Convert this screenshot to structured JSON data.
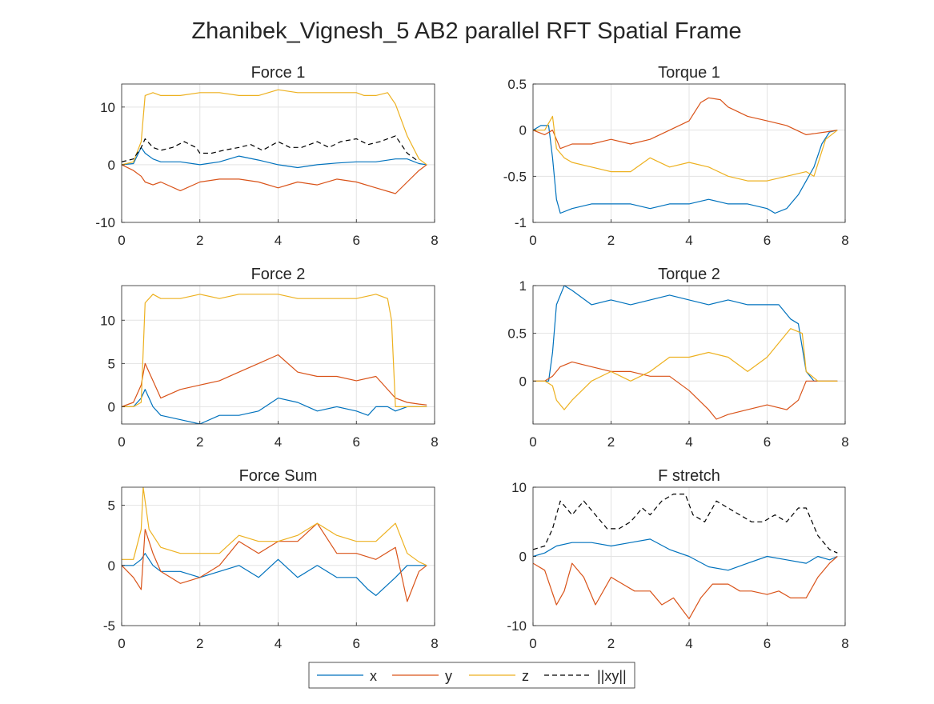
{
  "figure_title": "Zhanibek_Vignesh_5 AB2 parallel RFT Spatial Frame",
  "colors": {
    "x": "#0072BD",
    "y": "#D95319",
    "z": "#EDB120",
    "xy": "#000000"
  },
  "legend": [
    {
      "key": "x",
      "label": "x",
      "dash": false
    },
    {
      "key": "y",
      "label": "y",
      "dash": false
    },
    {
      "key": "z",
      "label": "z",
      "dash": false
    },
    {
      "key": "xy",
      "label": "||xy||",
      "dash": true
    }
  ],
  "chart_data": [
    {
      "type": "line",
      "title": "Force 1",
      "xlim": [
        0,
        8
      ],
      "ylim": [
        -10,
        14
      ],
      "xticks": [
        0,
        2,
        4,
        6,
        8
      ],
      "yticks": [
        -10,
        0,
        10
      ],
      "grid": true,
      "series": [
        {
          "key": "x",
          "x": [
            0,
            0.3,
            0.5,
            0.6,
            0.8,
            1,
            1.5,
            2,
            2.5,
            3,
            3.5,
            4,
            4.5,
            5,
            5.5,
            6,
            6.5,
            7,
            7.3,
            7.6,
            7.8
          ],
          "y": [
            0,
            0.2,
            3,
            2,
            1,
            0.5,
            0.5,
            0,
            0.5,
            1.5,
            0.8,
            0,
            -0.5,
            0,
            0.3,
            0.5,
            0.5,
            1,
            1,
            0.2,
            0
          ]
        },
        {
          "key": "y",
          "x": [
            0,
            0.3,
            0.5,
            0.6,
            0.8,
            1,
            1.5,
            2,
            2.5,
            3,
            3.5,
            4,
            4.5,
            5,
            5.5,
            6,
            6.5,
            7,
            7.3,
            7.6,
            7.8
          ],
          "y": [
            0,
            -1,
            -2,
            -3,
            -3.5,
            -3,
            -4.5,
            -3,
            -2.5,
            -2.5,
            -3,
            -4,
            -3,
            -3.5,
            -2.5,
            -3,
            -4,
            -5,
            -3,
            -1,
            0
          ]
        },
        {
          "key": "z",
          "x": [
            0,
            0.3,
            0.5,
            0.6,
            0.8,
            1,
            1.5,
            2,
            2.5,
            3,
            3.5,
            4,
            4.5,
            5,
            5.5,
            6,
            6.2,
            6.5,
            6.8,
            7,
            7.3,
            7.6,
            7.8
          ],
          "y": [
            0,
            0.5,
            4,
            12,
            12.5,
            12,
            12,
            12.5,
            12.5,
            12,
            12,
            13,
            12.5,
            12.5,
            12.5,
            12.5,
            12,
            12,
            12.5,
            10.5,
            5,
            1,
            0
          ]
        },
        {
          "key": "xy",
          "dash": true,
          "x": [
            0,
            0.3,
            0.5,
            0.6,
            0.8,
            1,
            1.3,
            1.6,
            1.9,
            2,
            2.3,
            2.6,
            3,
            3.3,
            3.6,
            4,
            4.3,
            4.6,
            5,
            5.3,
            5.6,
            6,
            6.3,
            6.6,
            7,
            7.3,
            7.6
          ],
          "y": [
            0.5,
            1,
            3,
            4.5,
            3,
            2.5,
            3,
            4,
            3,
            2,
            2,
            2.5,
            3,
            3.5,
            2.5,
            4,
            3,
            3,
            4,
            3,
            4,
            4.5,
            3.5,
            4,
            5,
            2,
            0.5
          ]
        }
      ]
    },
    {
      "type": "line",
      "title": "Torque 1",
      "xlim": [
        0,
        8
      ],
      "ylim": [
        -1,
        0.5
      ],
      "xticks": [
        0,
        2,
        4,
        6,
        8
      ],
      "yticks": [
        -1,
        -0.5,
        0,
        0.5
      ],
      "grid": true,
      "series": [
        {
          "key": "x",
          "x": [
            0,
            0.2,
            0.4,
            0.5,
            0.6,
            0.7,
            1,
            1.5,
            2,
            2.5,
            3,
            3.5,
            4,
            4.5,
            5,
            5.5,
            6,
            6.2,
            6.5,
            6.8,
            7,
            7.2,
            7.4,
            7.6,
            7.8
          ],
          "y": [
            0,
            0.05,
            0.05,
            -0.3,
            -0.75,
            -0.9,
            -0.85,
            -0.8,
            -0.8,
            -0.8,
            -0.85,
            -0.8,
            -0.8,
            -0.75,
            -0.8,
            -0.8,
            -0.85,
            -0.9,
            -0.85,
            -0.7,
            -0.55,
            -0.4,
            -0.15,
            -0.02,
            0
          ]
        },
        {
          "key": "y",
          "x": [
            0,
            0.3,
            0.5,
            0.7,
            1,
            1.5,
            2,
            2.5,
            3,
            3.5,
            4,
            4.3,
            4.5,
            4.8,
            5,
            5.5,
            6,
            6.5,
            7,
            7.5,
            7.8
          ],
          "y": [
            0,
            -0.05,
            0,
            -0.2,
            -0.15,
            -0.15,
            -0.1,
            -0.15,
            -0.1,
            0,
            0.1,
            0.3,
            0.35,
            0.33,
            0.25,
            0.15,
            0.1,
            0.05,
            -0.05,
            -0.02,
            0
          ]
        },
        {
          "key": "y_z",
          "x": [
            0,
            0.3,
            0.5,
            0.6,
            0.8,
            1,
            1.5,
            2,
            2.5,
            3,
            3.5,
            4,
            4.5,
            5,
            5.5,
            6,
            6.5,
            7,
            7.2,
            7.5,
            7.8
          ],
          "y": [
            0,
            0,
            0.15,
            -0.2,
            -0.3,
            -0.35,
            -0.4,
            -0.45,
            -0.45,
            -0.3,
            -0.4,
            -0.35,
            -0.4,
            -0.5,
            -0.55,
            -0.55,
            -0.5,
            -0.45,
            -0.5,
            -0.1,
            0
          ]
        }
      ]
    },
    {
      "type": "line",
      "title": "Force 2",
      "xlim": [
        0,
        8
      ],
      "ylim": [
        -2,
        14
      ],
      "xticks": [
        0,
        2,
        4,
        6,
        8
      ],
      "yticks": [
        0,
        5,
        10
      ],
      "grid": true,
      "series": [
        {
          "key": "x",
          "x": [
            0,
            0.3,
            0.5,
            0.6,
            0.8,
            1,
            1.5,
            2,
            2.5,
            3,
            3.5,
            4,
            4.5,
            5,
            5.5,
            6,
            6.3,
            6.5,
            6.8,
            7,
            7.3,
            7.6,
            7.8
          ],
          "y": [
            0,
            0,
            1,
            2,
            0,
            -1,
            -1.5,
            -2,
            -1,
            -1,
            -0.5,
            1,
            0.5,
            -0.5,
            0,
            -0.5,
            -1,
            0,
            0,
            -0.5,
            0,
            0,
            0
          ]
        },
        {
          "key": "y",
          "x": [
            0,
            0.3,
            0.5,
            0.6,
            0.8,
            1,
            1.5,
            2,
            2.5,
            3,
            3.5,
            4,
            4.5,
            5,
            5.5,
            6,
            6.5,
            7,
            7.3,
            7.6,
            7.8
          ],
          "y": [
            0,
            0.5,
            2.5,
            5,
            3,
            1,
            2,
            2.5,
            3,
            4,
            5,
            6,
            4,
            3.5,
            3.5,
            3,
            3.5,
            1,
            0.5,
            0.3,
            0.2
          ]
        },
        {
          "key": "z",
          "x": [
            0,
            0.3,
            0.5,
            0.6,
            0.8,
            1,
            1.5,
            2,
            2.5,
            3,
            3.5,
            4,
            4.5,
            5,
            5.5,
            6,
            6.5,
            6.8,
            6.9,
            7,
            7.3,
            7.6,
            7.8
          ],
          "y": [
            0,
            0,
            0.5,
            12,
            13,
            12.5,
            12.5,
            13,
            12.5,
            13,
            13,
            13,
            12.5,
            12.5,
            12.5,
            12.5,
            13,
            12.5,
            10,
            0,
            0,
            0,
            0
          ]
        }
      ]
    },
    {
      "type": "line",
      "title": "Torque 2",
      "xlim": [
        0,
        8
      ],
      "ylim": [
        -0.45,
        1
      ],
      "xticks": [
        0,
        2,
        4,
        6,
        8
      ],
      "yticks": [
        0,
        0.5,
        1
      ],
      "grid": true,
      "series": [
        {
          "key": "x",
          "x": [
            0,
            0.3,
            0.4,
            0.5,
            0.6,
            0.8,
            1,
            1.5,
            2,
            2.5,
            3,
            3.5,
            4,
            4.5,
            5,
            5.5,
            6,
            6.3,
            6.6,
            6.8,
            7,
            7.2,
            7.5,
            7.8
          ],
          "y": [
            0,
            0,
            0,
            0.3,
            0.8,
            1,
            0.95,
            0.8,
            0.85,
            0.8,
            0.85,
            0.9,
            0.85,
            0.8,
            0.85,
            0.8,
            0.8,
            0.8,
            0.65,
            0.6,
            0.1,
            0,
            0,
            0
          ]
        },
        {
          "key": "y",
          "x": [
            0,
            0.3,
            0.5,
            0.7,
            1,
            1.5,
            2,
            2.5,
            3,
            3.5,
            4,
            4.5,
            4.7,
            5,
            5.5,
            6,
            6.5,
            6.8,
            7,
            7.3,
            7.6,
            7.8
          ],
          "y": [
            0,
            0,
            0.05,
            0.15,
            0.2,
            0.15,
            0.1,
            0.1,
            0.05,
            0.05,
            -0.1,
            -0.3,
            -0.4,
            -0.35,
            -0.3,
            -0.25,
            -0.3,
            -0.2,
            0,
            0,
            0,
            0
          ]
        },
        {
          "key": "z",
          "x": [
            0,
            0.3,
            0.5,
            0.6,
            0.8,
            1,
            1.5,
            2,
            2.5,
            3,
            3.5,
            4,
            4.5,
            5,
            5.5,
            6,
            6.3,
            6.6,
            6.9,
            7,
            7.3,
            7.6,
            7.8
          ],
          "y": [
            0,
            0,
            -0.05,
            -0.2,
            -0.3,
            -0.2,
            0,
            0.1,
            0,
            0.1,
            0.25,
            0.25,
            0.3,
            0.25,
            0.1,
            0.25,
            0.4,
            0.55,
            0.5,
            0.1,
            0,
            0,
            0
          ]
        }
      ]
    },
    {
      "type": "line",
      "title": "Force Sum",
      "xlim": [
        0,
        8
      ],
      "ylim": [
        -5,
        6.5
      ],
      "xticks": [
        0,
        2,
        4,
        6,
        8
      ],
      "yticks": [
        -5,
        0,
        5
      ],
      "grid": true,
      "series": [
        {
          "key": "x",
          "x": [
            0,
            0.3,
            0.5,
            0.6,
            0.8,
            1,
            1.5,
            2,
            2.5,
            3,
            3.5,
            4,
            4.5,
            5,
            5.5,
            6,
            6.3,
            6.5,
            7,
            7.3,
            7.6,
            7.8
          ],
          "y": [
            0,
            0,
            0.5,
            1,
            0,
            -0.5,
            -0.5,
            -1,
            -0.5,
            0,
            -1,
            0.5,
            -1,
            0,
            -1,
            -1,
            -2,
            -2.5,
            -1,
            0,
            0,
            0
          ]
        },
        {
          "key": "y",
          "x": [
            0,
            0.3,
            0.5,
            0.6,
            0.8,
            1,
            1.5,
            2,
            2.5,
            3,
            3.5,
            4,
            4.5,
            5,
            5.5,
            6,
            6.5,
            7,
            7.3,
            7.6,
            7.8
          ],
          "y": [
            0,
            -1,
            -2,
            3,
            1,
            -0.5,
            -1.5,
            -1,
            0,
            2,
            1,
            2,
            2,
            3.5,
            1,
            1,
            0.5,
            1.5,
            -3,
            -0.5,
            0
          ]
        },
        {
          "key": "z",
          "x": [
            0,
            0.3,
            0.5,
            0.55,
            0.7,
            1,
            1.5,
            2,
            2.5,
            3,
            3.5,
            4,
            4.5,
            5,
            5.5,
            6,
            6.5,
            7,
            7.3,
            7.6,
            7.8
          ],
          "y": [
            0.5,
            0.5,
            3,
            6.5,
            3,
            1.5,
            1,
            1,
            1,
            2.5,
            2,
            2,
            2.5,
            3.5,
            2.5,
            2,
            2,
            3.5,
            1,
            0.3,
            0
          ]
        }
      ]
    },
    {
      "type": "line",
      "title": "F stretch",
      "xlim": [
        0,
        8
      ],
      "ylim": [
        -10,
        10
      ],
      "xticks": [
        0,
        2,
        4,
        6,
        8
      ],
      "yticks": [
        -10,
        0,
        10
      ],
      "grid": true,
      "series": [
        {
          "key": "x",
          "x": [
            0,
            0.3,
            0.6,
            1,
            1.5,
            2,
            2.5,
            3,
            3.5,
            4,
            4.5,
            5,
            5.5,
            6,
            6.5,
            7,
            7.3,
            7.6,
            7.8
          ],
          "y": [
            0,
            0.5,
            1.5,
            2,
            2,
            1.5,
            2,
            2.5,
            1,
            0,
            -1.5,
            -2,
            -1,
            0,
            -0.5,
            -1,
            0,
            -0.5,
            0
          ]
        },
        {
          "key": "y",
          "x": [
            0,
            0.3,
            0.6,
            0.8,
            1,
            1.3,
            1.6,
            2,
            2.3,
            2.6,
            3,
            3.3,
            3.6,
            4,
            4.3,
            4.6,
            5,
            5.3,
            5.6,
            6,
            6.3,
            6.6,
            7,
            7.3,
            7.6,
            7.8
          ],
          "y": [
            -1,
            -2,
            -7,
            -5,
            -1,
            -3,
            -7,
            -3,
            -4,
            -5,
            -5,
            -7,
            -6,
            -9,
            -6,
            -4,
            -4,
            -5,
            -5,
            -5.5,
            -5,
            -6,
            -6,
            -3,
            -1,
            0
          ]
        },
        {
          "key": "xy",
          "dash": true,
          "x": [
            0,
            0.3,
            0.5,
            0.7,
            1,
            1.3,
            1.6,
            1.9,
            2.2,
            2.5,
            2.8,
            3,
            3.3,
            3.6,
            3.9,
            4.1,
            4.4,
            4.7,
            5,
            5.3,
            5.6,
            5.9,
            6.2,
            6.5,
            6.8,
            7,
            7.3,
            7.6,
            7.8
          ],
          "y": [
            1,
            1.5,
            4,
            8,
            6,
            8,
            6,
            4,
            4,
            5,
            7,
            6,
            8,
            9,
            9,
            6,
            5,
            8,
            7,
            6,
            5,
            5,
            6,
            5,
            7,
            7,
            3,
            1,
            0.5
          ]
        }
      ]
    }
  ]
}
